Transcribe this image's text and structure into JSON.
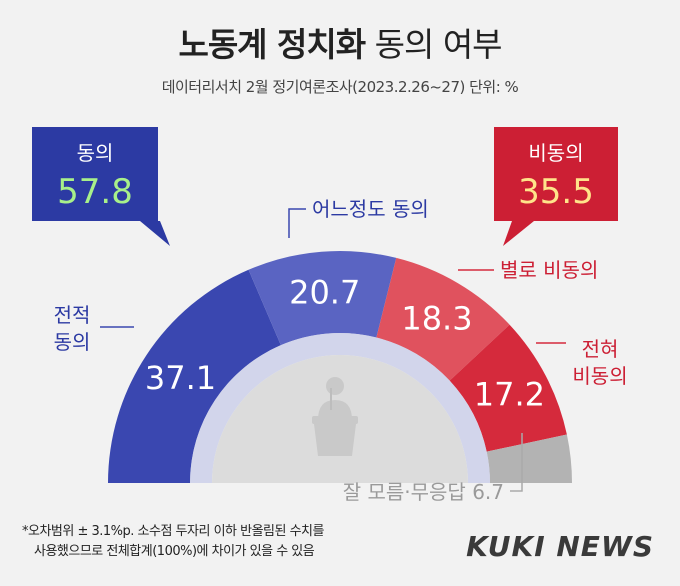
{
  "title": {
    "bold": "노동계 정치화",
    "light": "동의 여부"
  },
  "subtitle": "데이터리서치 2월 정기여론조사(2023.2.26~27) 단위: %",
  "chart_data": {
    "type": "pie",
    "variant": "semicircle-donut",
    "categories": [
      "전적 동의",
      "어느정도 동의",
      "별로 비동의",
      "전혀 비동의",
      "잘 모름·무응답"
    ],
    "values": [
      37.1,
      20.7,
      18.3,
      17.2,
      6.7
    ],
    "value_labels": [
      "37.1",
      "20.7",
      "18.3",
      "17.2",
      "6.7"
    ],
    "colors": [
      "#3a47b0",
      "#5a64c2",
      "#e0525e",
      "#d52a3c",
      "#b3b3b3"
    ],
    "group_labels": {
      "agree": {
        "label": "동의",
        "value": "57.8",
        "color": "#2c3aa3",
        "value_color": "#a8f08a"
      },
      "disagree": {
        "label": "비동의",
        "value": "35.5",
        "color": "#cc1f34",
        "value_color": "#ffe48a"
      }
    },
    "callouts": {
      "strong_agree": [
        "전적",
        "동의"
      ],
      "somewhat_agree": "어느정도 동의",
      "somewhat_disagree": "별로 비동의",
      "strong_disagree": [
        "전혀",
        "비동의"
      ],
      "unknown": "잘 모름·무응답 6.7"
    }
  },
  "footnote": [
    "*오차범위 ± 3.1%p. 소수점 두자리 이하 반올림된 수치를",
    "사용했으므로 전체합계(100%)에 차이가 있을 수 있음"
  ],
  "logo": "KUKI NEWS"
}
